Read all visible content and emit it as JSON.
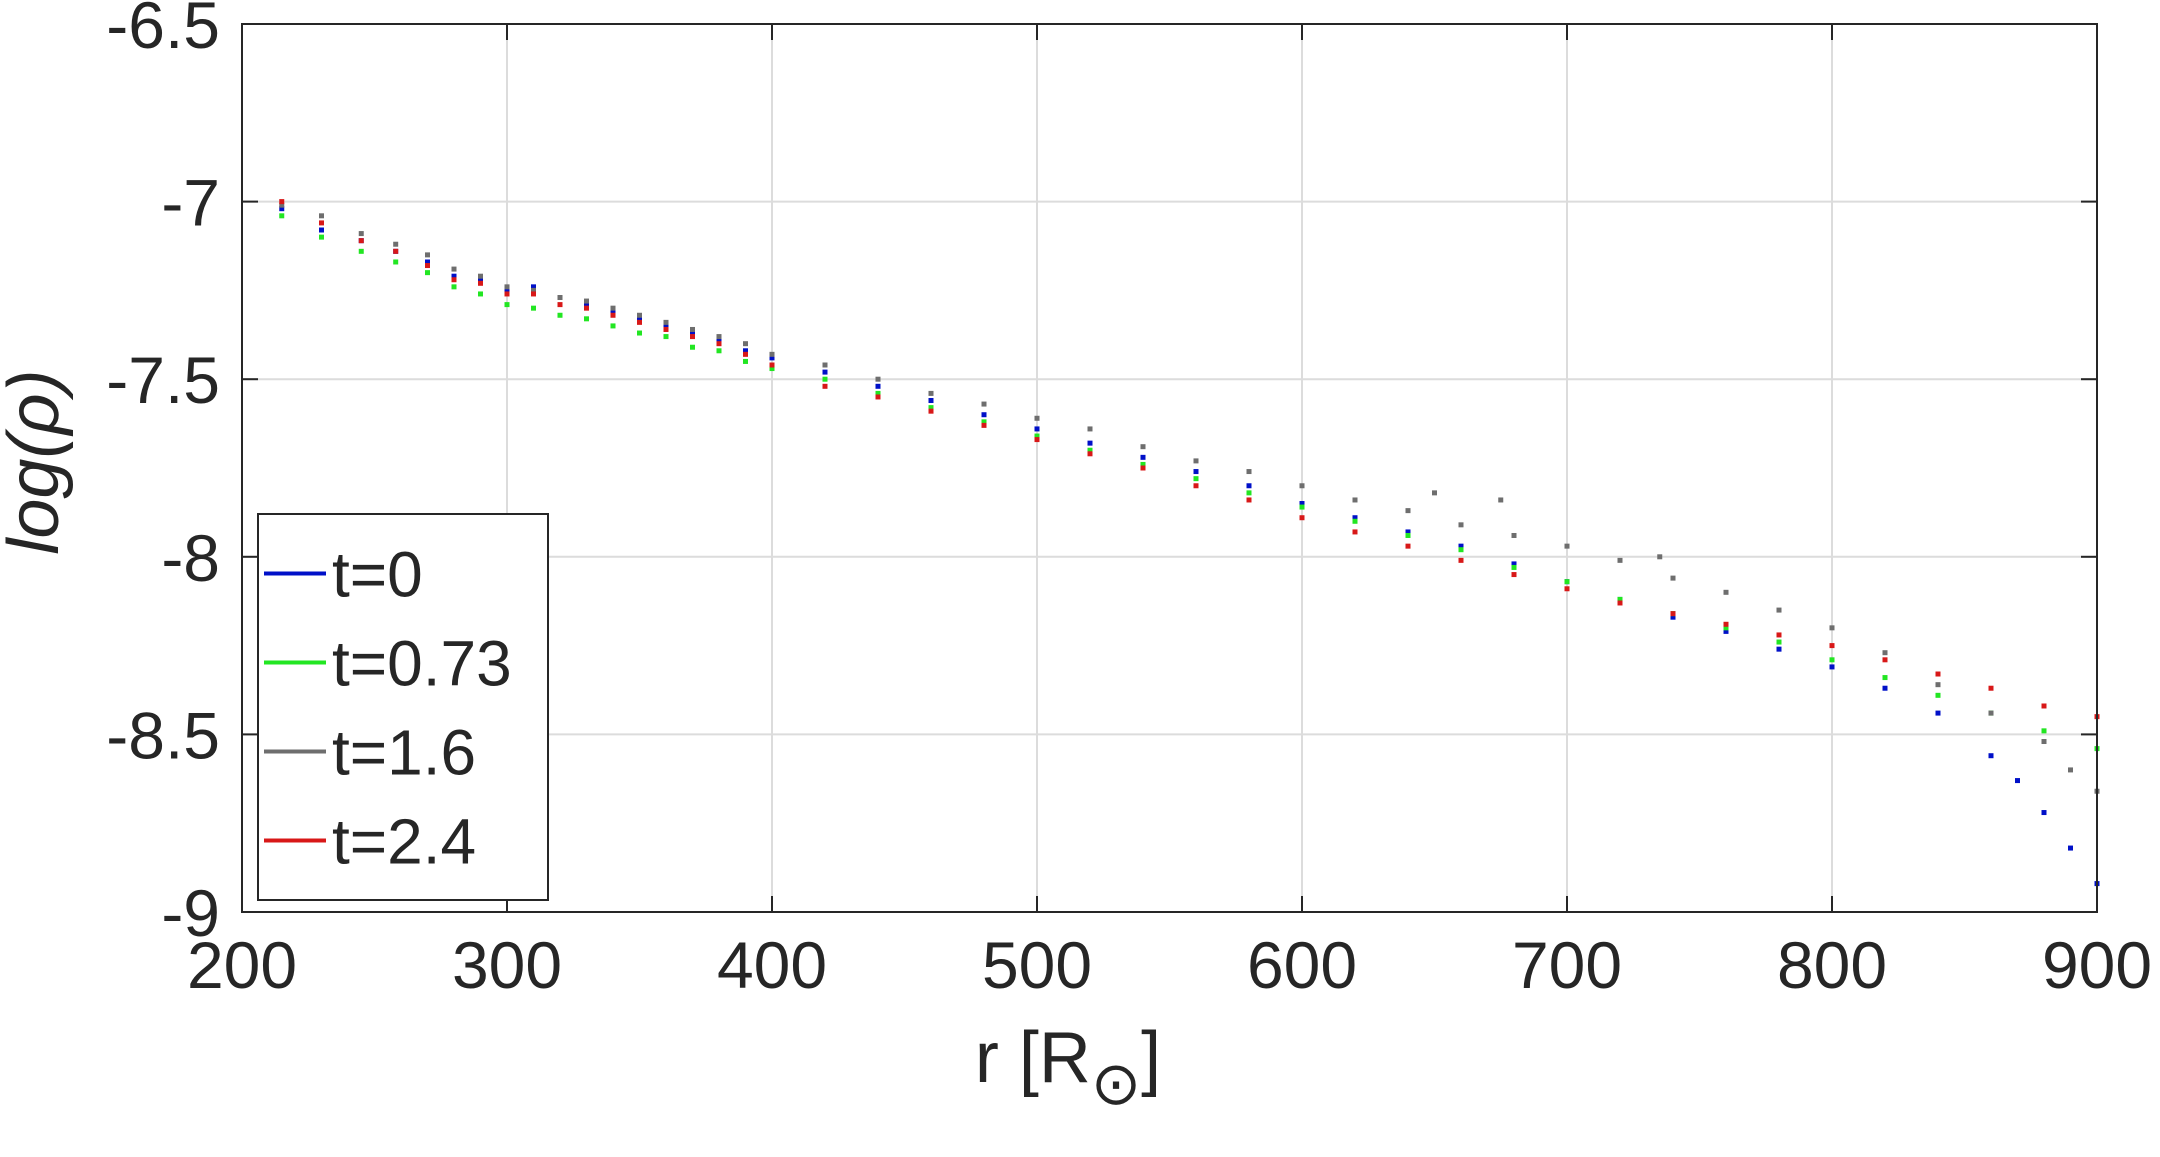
{
  "chart_data": {
    "type": "scatter",
    "xlabel": "r [R",
    "xlabel_subscript": "⊙",
    "xlabel_suffix": "]",
    "ylabel": "log(ρ)",
    "xlim": [
      200,
      900
    ],
    "ylim": [
      -9,
      -6.5
    ],
    "xticks": [
      "200",
      "300",
      "400",
      "500",
      "600",
      "700",
      "800",
      "900"
    ],
    "yticks": [
      "-6.5",
      "-7",
      "-7.5",
      "-8",
      "-8.5",
      "-9"
    ],
    "grid": true,
    "legend_position": "lower-left",
    "series": [
      {
        "name": "t=0",
        "color": "#0010c8",
        "points": [
          [
            215,
            -7.02
          ],
          [
            230,
            -7.08
          ],
          [
            245,
            -7.11
          ],
          [
            258,
            -7.14
          ],
          [
            270,
            -7.17
          ],
          [
            280,
            -7.21
          ],
          [
            290,
            -7.22
          ],
          [
            300,
            -7.25
          ],
          [
            310,
            -7.24
          ],
          [
            320,
            -7.27
          ],
          [
            330,
            -7.29
          ],
          [
            340,
            -7.31
          ],
          [
            350,
            -7.33
          ],
          [
            360,
            -7.35
          ],
          [
            370,
            -7.37
          ],
          [
            380,
            -7.39
          ],
          [
            390,
            -7.42
          ],
          [
            400,
            -7.44
          ],
          [
            420,
            -7.48
          ],
          [
            440,
            -7.52
          ],
          [
            460,
            -7.56
          ],
          [
            480,
            -7.6
          ],
          [
            500,
            -7.64
          ],
          [
            520,
            -7.68
          ],
          [
            540,
            -7.72
          ],
          [
            560,
            -7.76
          ],
          [
            580,
            -7.8
          ],
          [
            600,
            -7.85
          ],
          [
            620,
            -7.89
          ],
          [
            640,
            -7.93
          ],
          [
            660,
            -7.97
          ],
          [
            680,
            -8.02
          ],
          [
            700,
            -8.07
          ],
          [
            720,
            -8.12
          ],
          [
            740,
            -8.17
          ],
          [
            760,
            -8.21
          ],
          [
            780,
            -8.26
          ],
          [
            800,
            -8.31
          ],
          [
            820,
            -8.37
          ],
          [
            840,
            -8.44
          ],
          [
            860,
            -8.56
          ],
          [
            870,
            -8.63
          ],
          [
            880,
            -8.72
          ],
          [
            890,
            -8.82
          ],
          [
            900,
            -8.92
          ]
        ]
      },
      {
        "name": "t=0.73",
        "color": "#22e622",
        "points": [
          [
            215,
            -7.04
          ],
          [
            230,
            -7.1
          ],
          [
            245,
            -7.14
          ],
          [
            258,
            -7.17
          ],
          [
            270,
            -7.2
          ],
          [
            280,
            -7.24
          ],
          [
            290,
            -7.26
          ],
          [
            300,
            -7.29
          ],
          [
            310,
            -7.3
          ],
          [
            320,
            -7.32
          ],
          [
            330,
            -7.33
          ],
          [
            340,
            -7.35
          ],
          [
            350,
            -7.37
          ],
          [
            360,
            -7.38
          ],
          [
            370,
            -7.41
          ],
          [
            380,
            -7.42
          ],
          [
            390,
            -7.45
          ],
          [
            400,
            -7.47
          ],
          [
            420,
            -7.5
          ],
          [
            440,
            -7.54
          ],
          [
            460,
            -7.58
          ],
          [
            480,
            -7.62
          ],
          [
            500,
            -7.66
          ],
          [
            520,
            -7.7
          ],
          [
            540,
            -7.74
          ],
          [
            560,
            -7.78
          ],
          [
            580,
            -7.82
          ],
          [
            600,
            -7.86
          ],
          [
            620,
            -7.9
          ],
          [
            640,
            -7.94
          ],
          [
            660,
            -7.98
          ],
          [
            680,
            -8.03
          ],
          [
            700,
            -8.07
          ],
          [
            720,
            -8.12
          ],
          [
            740,
            -8.16
          ],
          [
            760,
            -8.2
          ],
          [
            780,
            -8.24
          ],
          [
            800,
            -8.29
          ],
          [
            820,
            -8.34
          ],
          [
            840,
            -8.39
          ],
          [
            860,
            -8.44
          ],
          [
            880,
            -8.49
          ],
          [
            900,
            -8.54
          ]
        ]
      },
      {
        "name": "t=1.6",
        "color": "#6e6e6e",
        "points": [
          [
            215,
            -7.01
          ],
          [
            230,
            -7.04
          ],
          [
            245,
            -7.09
          ],
          [
            258,
            -7.12
          ],
          [
            270,
            -7.15
          ],
          [
            280,
            -7.19
          ],
          [
            290,
            -7.21
          ],
          [
            300,
            -7.24
          ],
          [
            310,
            -7.25
          ],
          [
            320,
            -7.27
          ],
          [
            330,
            -7.28
          ],
          [
            340,
            -7.3
          ],
          [
            350,
            -7.32
          ],
          [
            360,
            -7.34
          ],
          [
            370,
            -7.36
          ],
          [
            380,
            -7.38
          ],
          [
            390,
            -7.4
          ],
          [
            400,
            -7.43
          ],
          [
            420,
            -7.46
          ],
          [
            440,
            -7.5
          ],
          [
            460,
            -7.54
          ],
          [
            480,
            -7.57
          ],
          [
            500,
            -7.61
          ],
          [
            520,
            -7.64
          ],
          [
            540,
            -7.69
          ],
          [
            560,
            -7.73
          ],
          [
            580,
            -7.76
          ],
          [
            600,
            -7.8
          ],
          [
            620,
            -7.84
          ],
          [
            640,
            -7.87
          ],
          [
            650,
            -7.82
          ],
          [
            660,
            -7.91
          ],
          [
            675,
            -7.84
          ],
          [
            680,
            -7.94
          ],
          [
            700,
            -7.97
          ],
          [
            720,
            -8.01
          ],
          [
            735,
            -8.0
          ],
          [
            740,
            -8.06
          ],
          [
            760,
            -8.1
          ],
          [
            780,
            -8.15
          ],
          [
            800,
            -8.2
          ],
          [
            820,
            -8.27
          ],
          [
            840,
            -8.36
          ],
          [
            860,
            -8.44
          ],
          [
            880,
            -8.52
          ],
          [
            890,
            -8.6
          ],
          [
            900,
            -8.66
          ]
        ]
      },
      {
        "name": "t=2.4",
        "color": "#d81818",
        "points": [
          [
            215,
            -7.0
          ],
          [
            230,
            -7.06
          ],
          [
            245,
            -7.11
          ],
          [
            258,
            -7.14
          ],
          [
            270,
            -7.18
          ],
          [
            280,
            -7.22
          ],
          [
            290,
            -7.23
          ],
          [
            300,
            -7.26
          ],
          [
            310,
            -7.26
          ],
          [
            320,
            -7.29
          ],
          [
            330,
            -7.3
          ],
          [
            340,
            -7.32
          ],
          [
            350,
            -7.34
          ],
          [
            360,
            -7.36
          ],
          [
            370,
            -7.38
          ],
          [
            380,
            -7.4
          ],
          [
            390,
            -7.43
          ],
          [
            400,
            -7.46
          ],
          [
            420,
            -7.52
          ],
          [
            440,
            -7.55
          ],
          [
            460,
            -7.59
          ],
          [
            480,
            -7.63
          ],
          [
            500,
            -7.67
          ],
          [
            520,
            -7.71
          ],
          [
            540,
            -7.75
          ],
          [
            560,
            -7.8
          ],
          [
            580,
            -7.84
          ],
          [
            600,
            -7.89
          ],
          [
            620,
            -7.93
          ],
          [
            640,
            -7.97
          ],
          [
            660,
            -8.01
          ],
          [
            680,
            -8.05
          ],
          [
            700,
            -8.09
          ],
          [
            720,
            -8.13
          ],
          [
            740,
            -8.16
          ],
          [
            760,
            -8.19
          ],
          [
            780,
            -8.22
          ],
          [
            800,
            -8.25
          ],
          [
            820,
            -8.29
          ],
          [
            840,
            -8.33
          ],
          [
            860,
            -8.37
          ],
          [
            880,
            -8.42
          ],
          [
            900,
            -8.45
          ]
        ]
      }
    ]
  }
}
